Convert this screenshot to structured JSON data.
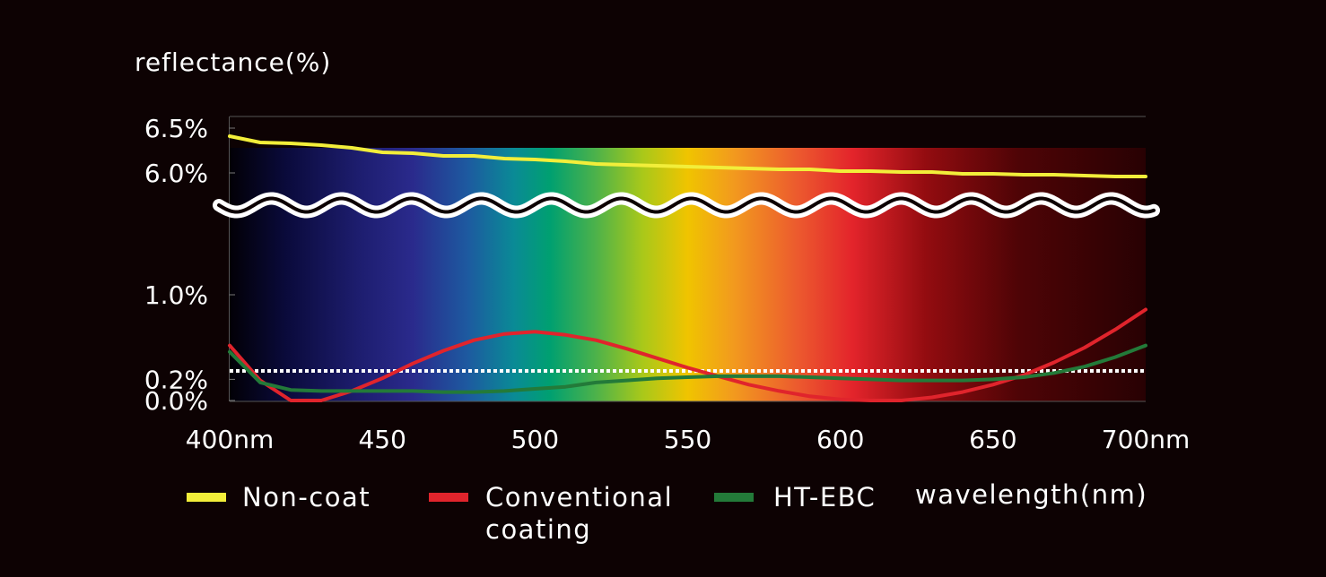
{
  "chart_data": {
    "type": "line",
    "ylabel": "reflectance(%)",
    "xlabel": "wavelength(nm)",
    "x_ticks": [
      {
        "value": 400,
        "label": "400nm"
      },
      {
        "value": 450,
        "label": "450"
      },
      {
        "value": 500,
        "label": "500"
      },
      {
        "value": 550,
        "label": "550"
      },
      {
        "value": 600,
        "label": "600"
      },
      {
        "value": 650,
        "label": "650"
      },
      {
        "value": 700,
        "label": "700nm"
      }
    ],
    "y_ticks": [
      {
        "value": 6.5,
        "label": "6.5%"
      },
      {
        "value": 6.0,
        "label": "6.0%"
      },
      {
        "value": 1.0,
        "label": "1.0%"
      },
      {
        "value": 0.2,
        "label": "0.2%"
      },
      {
        "value": 0.0,
        "label": "0.0%"
      }
    ],
    "xlim": [
      400,
      700
    ],
    "y_axis_break": [
      1.0,
      6.0
    ],
    "reference_line": {
      "y": 0.28,
      "style": "dotted",
      "color": "#ffffff"
    },
    "background": "visible spectrum gradient (violet to deep red)",
    "grid": false,
    "legend_position": "bottom",
    "x": [
      400,
      410,
      420,
      430,
      440,
      450,
      460,
      470,
      480,
      490,
      500,
      510,
      520,
      530,
      540,
      550,
      560,
      570,
      580,
      590,
      600,
      610,
      620,
      630,
      640,
      650,
      660,
      670,
      680,
      690,
      700
    ],
    "series": [
      {
        "name": "Non-coat",
        "color": "#f2ee3a",
        "values": [
          6.41,
          6.34,
          6.33,
          6.31,
          6.28,
          6.23,
          6.22,
          6.19,
          6.19,
          6.16,
          6.15,
          6.13,
          6.1,
          6.09,
          6.08,
          6.07,
          6.06,
          6.05,
          6.04,
          6.04,
          6.02,
          6.02,
          6.01,
          6.01,
          5.99,
          5.99,
          5.98,
          5.98,
          5.97,
          5.96,
          5.96
        ]
      },
      {
        "name": "Conventional coating",
        "name_lines": [
          "Conventional",
          "coating"
        ],
        "color": "#e0242c",
        "values": [
          0.52,
          0.19,
          0.0,
          0.0,
          0.09,
          0.21,
          0.35,
          0.47,
          0.57,
          0.63,
          0.65,
          0.62,
          0.57,
          0.49,
          0.4,
          0.31,
          0.23,
          0.15,
          0.09,
          0.04,
          0.01,
          0.0,
          0.0,
          0.03,
          0.08,
          0.15,
          0.24,
          0.36,
          0.5,
          0.67,
          0.86
        ]
      },
      {
        "name": "HT-EBC",
        "color": "#237a39",
        "values": [
          0.46,
          0.17,
          0.1,
          0.09,
          0.09,
          0.09,
          0.09,
          0.08,
          0.08,
          0.09,
          0.11,
          0.13,
          0.17,
          0.19,
          0.21,
          0.22,
          0.23,
          0.23,
          0.23,
          0.22,
          0.21,
          0.2,
          0.19,
          0.19,
          0.19,
          0.2,
          0.22,
          0.26,
          0.32,
          0.41,
          0.52
        ]
      }
    ]
  }
}
